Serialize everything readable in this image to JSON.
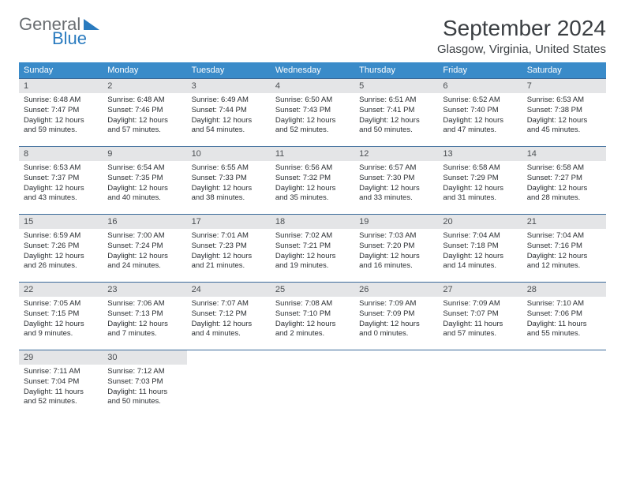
{
  "logo": {
    "general": "General",
    "blue": "Blue"
  },
  "title": "September 2024",
  "location": "Glasgow, Virginia, United States",
  "headers": [
    "Sunday",
    "Monday",
    "Tuesday",
    "Wednesday",
    "Thursday",
    "Friday",
    "Saturday"
  ],
  "colors": {
    "header_bg": "#3a8bc9",
    "header_fg": "#ffffff",
    "daynum_bg": "#e4e5e7",
    "row_border": "#3a6a9a",
    "logo_blue": "#2a7bbf",
    "logo_gray": "#6a6e72"
  },
  "weeks": [
    [
      {
        "num": "1",
        "sunrise": "6:48 AM",
        "sunset": "7:47 PM",
        "daylight": "12 hours and 59 minutes."
      },
      {
        "num": "2",
        "sunrise": "6:48 AM",
        "sunset": "7:46 PM",
        "daylight": "12 hours and 57 minutes."
      },
      {
        "num": "3",
        "sunrise": "6:49 AM",
        "sunset": "7:44 PM",
        "daylight": "12 hours and 54 minutes."
      },
      {
        "num": "4",
        "sunrise": "6:50 AM",
        "sunset": "7:43 PM",
        "daylight": "12 hours and 52 minutes."
      },
      {
        "num": "5",
        "sunrise": "6:51 AM",
        "sunset": "7:41 PM",
        "daylight": "12 hours and 50 minutes."
      },
      {
        "num": "6",
        "sunrise": "6:52 AM",
        "sunset": "7:40 PM",
        "daylight": "12 hours and 47 minutes."
      },
      {
        "num": "7",
        "sunrise": "6:53 AM",
        "sunset": "7:38 PM",
        "daylight": "12 hours and 45 minutes."
      }
    ],
    [
      {
        "num": "8",
        "sunrise": "6:53 AM",
        "sunset": "7:37 PM",
        "daylight": "12 hours and 43 minutes."
      },
      {
        "num": "9",
        "sunrise": "6:54 AM",
        "sunset": "7:35 PM",
        "daylight": "12 hours and 40 minutes."
      },
      {
        "num": "10",
        "sunrise": "6:55 AM",
        "sunset": "7:33 PM",
        "daylight": "12 hours and 38 minutes."
      },
      {
        "num": "11",
        "sunrise": "6:56 AM",
        "sunset": "7:32 PM",
        "daylight": "12 hours and 35 minutes."
      },
      {
        "num": "12",
        "sunrise": "6:57 AM",
        "sunset": "7:30 PM",
        "daylight": "12 hours and 33 minutes."
      },
      {
        "num": "13",
        "sunrise": "6:58 AM",
        "sunset": "7:29 PM",
        "daylight": "12 hours and 31 minutes."
      },
      {
        "num": "14",
        "sunrise": "6:58 AM",
        "sunset": "7:27 PM",
        "daylight": "12 hours and 28 minutes."
      }
    ],
    [
      {
        "num": "15",
        "sunrise": "6:59 AM",
        "sunset": "7:26 PM",
        "daylight": "12 hours and 26 minutes."
      },
      {
        "num": "16",
        "sunrise": "7:00 AM",
        "sunset": "7:24 PM",
        "daylight": "12 hours and 24 minutes."
      },
      {
        "num": "17",
        "sunrise": "7:01 AM",
        "sunset": "7:23 PM",
        "daylight": "12 hours and 21 minutes."
      },
      {
        "num": "18",
        "sunrise": "7:02 AM",
        "sunset": "7:21 PM",
        "daylight": "12 hours and 19 minutes."
      },
      {
        "num": "19",
        "sunrise": "7:03 AM",
        "sunset": "7:20 PM",
        "daylight": "12 hours and 16 minutes."
      },
      {
        "num": "20",
        "sunrise": "7:04 AM",
        "sunset": "7:18 PM",
        "daylight": "12 hours and 14 minutes."
      },
      {
        "num": "21",
        "sunrise": "7:04 AM",
        "sunset": "7:16 PM",
        "daylight": "12 hours and 12 minutes."
      }
    ],
    [
      {
        "num": "22",
        "sunrise": "7:05 AM",
        "sunset": "7:15 PM",
        "daylight": "12 hours and 9 minutes."
      },
      {
        "num": "23",
        "sunrise": "7:06 AM",
        "sunset": "7:13 PM",
        "daylight": "12 hours and 7 minutes."
      },
      {
        "num": "24",
        "sunrise": "7:07 AM",
        "sunset": "7:12 PM",
        "daylight": "12 hours and 4 minutes."
      },
      {
        "num": "25",
        "sunrise": "7:08 AM",
        "sunset": "7:10 PM",
        "daylight": "12 hours and 2 minutes."
      },
      {
        "num": "26",
        "sunrise": "7:09 AM",
        "sunset": "7:09 PM",
        "daylight": "12 hours and 0 minutes."
      },
      {
        "num": "27",
        "sunrise": "7:09 AM",
        "sunset": "7:07 PM",
        "daylight": "11 hours and 57 minutes."
      },
      {
        "num": "28",
        "sunrise": "7:10 AM",
        "sunset": "7:06 PM",
        "daylight": "11 hours and 55 minutes."
      }
    ],
    [
      {
        "num": "29",
        "sunrise": "7:11 AM",
        "sunset": "7:04 PM",
        "daylight": "11 hours and 52 minutes."
      },
      {
        "num": "30",
        "sunrise": "7:12 AM",
        "sunset": "7:03 PM",
        "daylight": "11 hours and 50 minutes."
      },
      null,
      null,
      null,
      null,
      null
    ]
  ],
  "labels": {
    "sunrise": "Sunrise:",
    "sunset": "Sunset:",
    "daylight": "Daylight:"
  }
}
